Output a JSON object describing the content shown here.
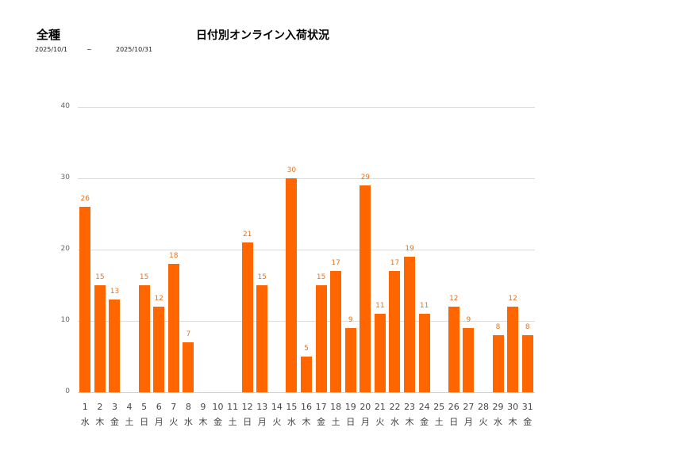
{
  "header": {
    "category": "全種",
    "title": "日付別オンライン入荷状況",
    "date_from": "2025/10/1",
    "date_sep": "~",
    "date_to": "2025/10/31"
  },
  "colors": {
    "bar": "#ff6600",
    "label": "#e8731c",
    "grid": "#dcdcdc"
  },
  "chart_data": {
    "type": "bar",
    "title": "日付別オンライン入荷状況",
    "xlabel": "",
    "ylabel": "",
    "ylim": [
      0,
      40
    ],
    "yticks": [
      0,
      10,
      20,
      30,
      40
    ],
    "grid": true,
    "legend": null,
    "categories": [
      "1",
      "2",
      "3",
      "4",
      "5",
      "6",
      "7",
      "8",
      "9",
      "10",
      "11",
      "12",
      "13",
      "14",
      "15",
      "16",
      "17",
      "18",
      "19",
      "20",
      "21",
      "22",
      "23",
      "24",
      "25",
      "26",
      "27",
      "28",
      "29",
      "30",
      "31"
    ],
    "weekdays": [
      "水",
      "木",
      "金",
      "土",
      "日",
      "月",
      "火",
      "水",
      "木",
      "金",
      "土",
      "日",
      "月",
      "火",
      "水",
      "木",
      "金",
      "土",
      "日",
      "月",
      "火",
      "水",
      "木",
      "金",
      "土",
      "日",
      "月",
      "火",
      "水",
      "木",
      "金"
    ],
    "values": [
      26,
      15,
      13,
      0,
      15,
      12,
      18,
      7,
      0,
      0,
      0,
      21,
      15,
      0,
      30,
      5,
      15,
      17,
      9,
      29,
      11,
      17,
      19,
      11,
      0,
      12,
      9,
      0,
      8,
      12,
      8
    ]
  }
}
